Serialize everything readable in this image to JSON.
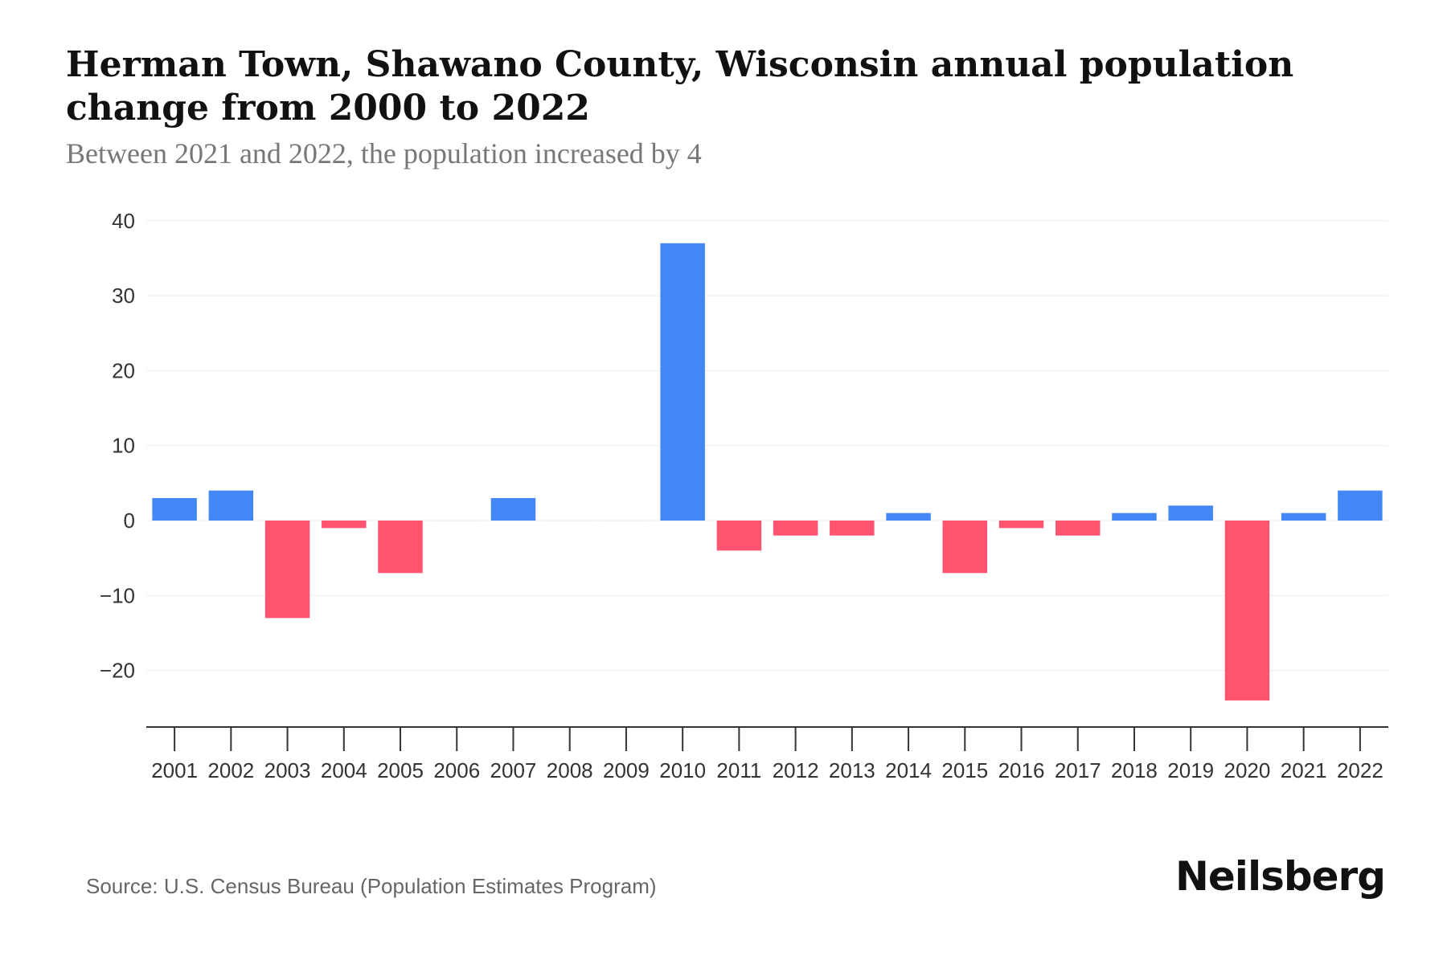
{
  "title": "Herman Town, Shawano County, Wisconsin annual population change from 2000 to 2022",
  "subtitle": "Between 2021 and 2022, the population increased by 4",
  "source": "Source: U.S. Census Bureau (Population Estimates Program)",
  "logo": "Neilsberg",
  "colors": {
    "positive": "#4287f5",
    "negative": "#ff5470"
  },
  "chart_data": {
    "type": "bar",
    "title": "Herman Town, Shawano County, Wisconsin annual population change from 2000 to 2022",
    "xlabel": "",
    "ylabel": "",
    "ylim": [
      -28,
      40
    ],
    "yticks": [
      40,
      30,
      20,
      10,
      0,
      -10,
      -20
    ],
    "grid": true,
    "categories": [
      "2001",
      "2002",
      "2003",
      "2004",
      "2005",
      "2006",
      "2007",
      "2008",
      "2009",
      "2010",
      "2011",
      "2012",
      "2013",
      "2014",
      "2015",
      "2016",
      "2017",
      "2018",
      "2019",
      "2020",
      "2021",
      "2022"
    ],
    "values": [
      3,
      4,
      -13,
      -1,
      -7,
      0,
      3,
      0,
      0,
      37,
      -4,
      -2,
      -2,
      1,
      -7,
      -1,
      -2,
      1,
      2,
      -24,
      1,
      4
    ]
  }
}
